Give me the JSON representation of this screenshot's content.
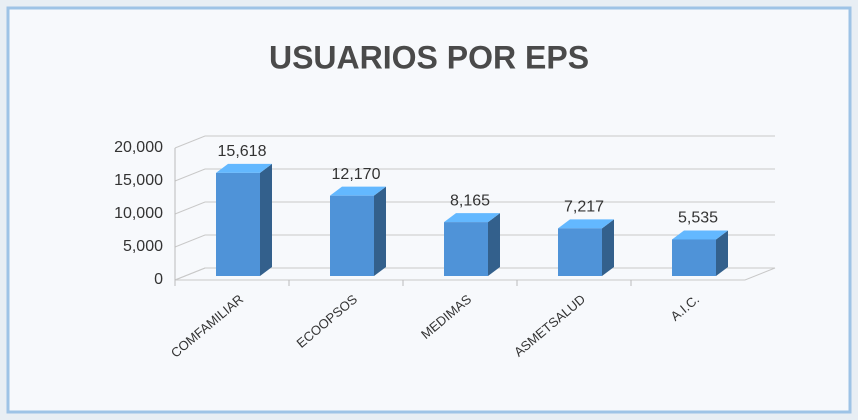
{
  "chart_data": {
    "type": "bar3d",
    "title": "USUARIOS POR EPS",
    "categories": [
      "COMFAMILIAR",
      "ECOOPSOS",
      "MEDIMAS",
      "ASMETSALUD",
      "A.I.C."
    ],
    "values": [
      15618,
      12170,
      8165,
      7217,
      5535
    ],
    "value_labels": [
      "15,618",
      "12,170",
      "8,165",
      "7,217",
      "5,535"
    ],
    "color": "#4f93d8",
    "ylim": [
      0,
      20000
    ],
    "yticks": [
      0,
      {
        "value": 5000,
        "label": "5,000"
      },
      {
        "value": 10000,
        "label": "10,000"
      },
      {
        "value": 15000,
        "label": "15,000"
      },
      {
        "value": 20000,
        "label": "20,000"
      }
    ],
    "grid": true
  }
}
